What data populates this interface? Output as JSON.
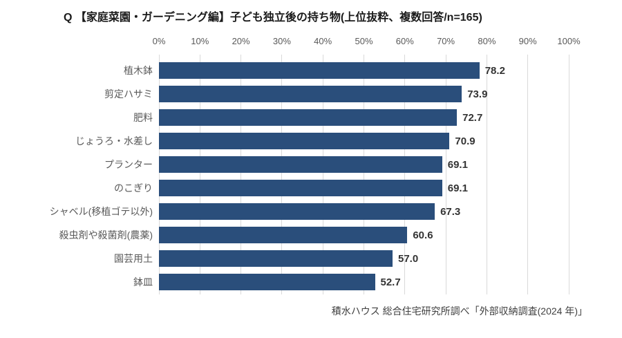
{
  "title": "Q 【家庭菜園・ガーデニング編】子ども独立後の持ち物(上位抜粋、複数回答/n=165)",
  "source_note": "積水ハウス 総合住宅研究所調べ「外部収納調査(2024 年)」",
  "colors": {
    "bar": "#2a4e7b",
    "gridline": "#d9d9d9",
    "axis_text": "#595959",
    "category_text": "#595959",
    "value_text": "#333333",
    "title_text": "#1a1a1a"
  },
  "chart_data": {
    "type": "bar",
    "orientation": "horizontal",
    "title": "Q 【家庭菜園・ガーデニング編】子ども独立後の持ち物(上位抜粋、複数回答/n=165)",
    "categories": [
      "植木鉢",
      "剪定ハサミ",
      "肥料",
      "じょうろ・水差し",
      "プランター",
      "のこぎり",
      "シャベル(移植ゴテ以外)",
      "殺虫剤や殺菌剤(農薬)",
      "園芸用土",
      "鉢皿"
    ],
    "values": [
      78.2,
      73.9,
      72.7,
      70.9,
      69.1,
      69.1,
      67.3,
      60.6,
      57.0,
      52.7
    ],
    "value_labels": [
      "78.2",
      "73.9",
      "72.7",
      "70.9",
      "69.1",
      "69.1",
      "67.3",
      "60.6",
      "57.0",
      "52.7"
    ],
    "xlabel": "",
    "ylabel": "",
    "xlim": [
      0,
      100
    ],
    "x_ticks": [
      "0%",
      "10%",
      "20%",
      "30%",
      "40%",
      "50%",
      "60%",
      "70%",
      "80%",
      "90%",
      "100%"
    ],
    "grid": true,
    "legend": "none",
    "annotation": "積水ハウス 総合住宅研究所調べ「外部収納調査(2024 年)」"
  }
}
